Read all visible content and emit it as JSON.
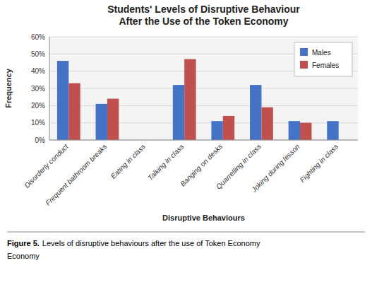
{
  "chart_data": {
    "type": "bar",
    "title": "Students' Levels of Disruptive Behaviour\nAfter the Use of the Token Economy",
    "x_label": "Disruptive Behaviours",
    "y_label": "Frequency",
    "categories": [
      "Disorderly conduct",
      "Frequent bathroom breaks",
      "Eating in class",
      "Talking in class",
      "Banging on desks",
      "Quarrelling in class",
      "Joking during lesson",
      "Fighting in class"
    ],
    "series": [
      {
        "name": "Males",
        "color": "#4472C4",
        "values": [
          46,
          21,
          0,
          32,
          11,
          32,
          11,
          11
        ]
      },
      {
        "name": "Females",
        "color": "#C0504D",
        "values": [
          33,
          24,
          0,
          47,
          14,
          19,
          10,
          0
        ]
      }
    ],
    "ylim": [
      0,
      60
    ],
    "yticks": [
      {
        "value": 0,
        "label": "0%"
      },
      {
        "value": 10,
        "label": "10%"
      },
      {
        "value": 20,
        "label": "20%"
      },
      {
        "value": 30,
        "label": "30%"
      },
      {
        "value": 40,
        "label": "40%"
      },
      {
        "value": 50,
        "label": "50%"
      },
      {
        "value": 60,
        "label": "60%"
      }
    ],
    "grid": true,
    "legend": "upper right",
    "annotations": [
      "Figure 5.",
      "Levels of disruptive behaviours after the use of Token Economy",
      "Economy"
    ]
  }
}
